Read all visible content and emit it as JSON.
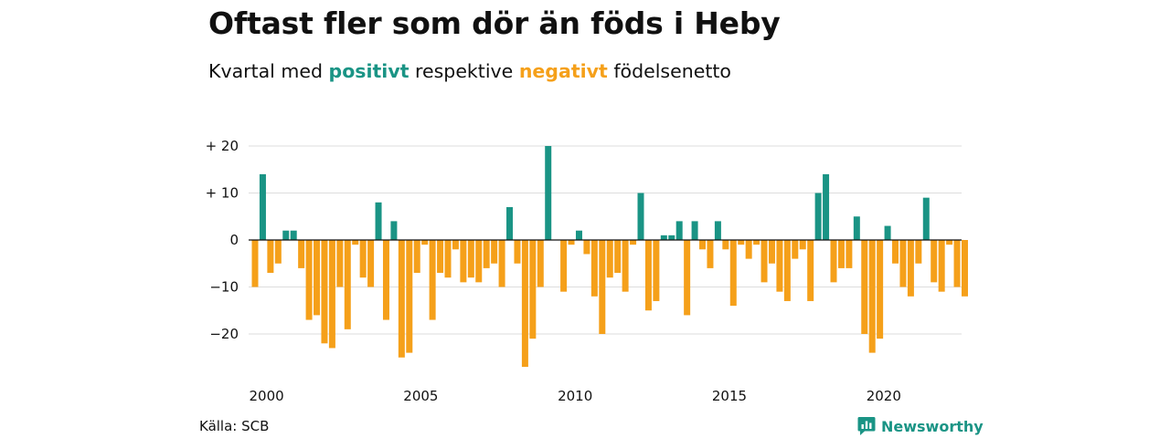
{
  "title": "Oftast fler som dör än föds i Heby",
  "subtitle": {
    "prefix": "Kvartal med",
    "positive_word": "positivt",
    "middle": "respektive",
    "negative_word": "negativt",
    "suffix": "födelsenetto"
  },
  "source": "Källa: SCB",
  "brand": "Newsworthy",
  "colors": {
    "positive": "#1a9485",
    "negative": "#f5a01a",
    "grid": "#dddddd",
    "zero": "#111111"
  },
  "chart_data": {
    "type": "bar",
    "title": "Oftast fler som dör än föds i Heby",
    "subtitle": "Kvartal med positivt respektive negativt födelsenetto",
    "xlabel": "",
    "ylabel": "",
    "ylim": [
      -28,
      22
    ],
    "y_ticks": [
      {
        "value": 20,
        "label": "+ 20"
      },
      {
        "value": 10,
        "label": "+ 10"
      },
      {
        "value": 0,
        "label": "0"
      },
      {
        "value": -10,
        "label": "−10"
      },
      {
        "value": -20,
        "label": "−20"
      }
    ],
    "x_ticks": [
      "2000",
      "2005",
      "2010",
      "2015",
      "2020"
    ],
    "grid": true,
    "start": "2000 Q1",
    "end": "2023 Q1",
    "values": [
      -10,
      14,
      -7,
      -5,
      2,
      2,
      -6,
      -17,
      -16,
      -22,
      -23,
      -10,
      -19,
      -1,
      -8,
      -10,
      8,
      -17,
      4,
      -25,
      -24,
      -7,
      -1,
      -17,
      -7,
      -8,
      -2,
      -9,
      -8,
      -9,
      -6,
      -5,
      -10,
      7,
      -5,
      -27,
      -21,
      -10,
      20,
      0,
      -11,
      -1,
      2,
      -3,
      -12,
      -20,
      -8,
      -7,
      -11,
      -1,
      10,
      -15,
      -13,
      1,
      1,
      4,
      -16,
      4,
      -2,
      -6,
      4,
      -2,
      -14,
      -1,
      -4,
      -1,
      -9,
      -5,
      -11,
      -13,
      -4,
      -2,
      -13,
      10,
      14,
      -9,
      -6,
      -6,
      5,
      -20,
      -24,
      -21,
      3,
      -5,
      -10,
      -12,
      -5,
      9,
      -9,
      -11,
      -1,
      -10,
      -12
    ]
  }
}
